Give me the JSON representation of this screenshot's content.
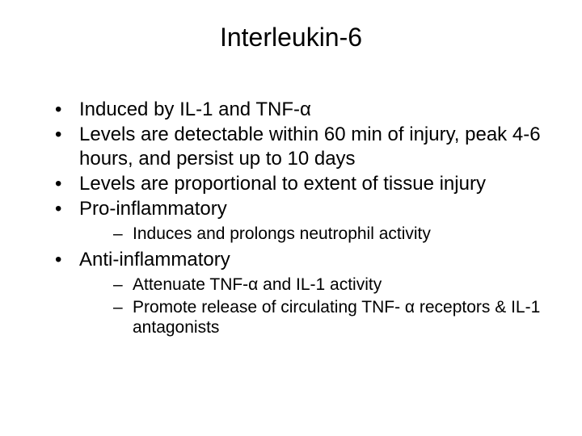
{
  "slide": {
    "title": "Interleukin-6",
    "bullets": [
      {
        "text": "Induced by IL-1 and TNF-α"
      },
      {
        "text": "Levels are detectable within 60 min of injury, peak 4-6 hours, and persist up to 10 days"
      },
      {
        "text": "Levels are proportional to extent of tissue injury"
      },
      {
        "text": "Pro-inflammatory",
        "sub": [
          "Induces and prolongs neutrophil activity"
        ]
      },
      {
        "text": "Anti-inflammatory",
        "sub": [
          "Attenuate TNF-α and IL-1 activity",
          "Promote release of circulating TNF- α receptors & IL-1 antagonists"
        ]
      }
    ]
  },
  "style": {
    "background_color": "#ffffff",
    "text_color": "#000000",
    "font_family": "Arial",
    "title_fontsize": 32,
    "body_fontsize": 24,
    "sub_fontsize": 21,
    "bullet_char": "•",
    "sub_bullet_char": "–"
  }
}
